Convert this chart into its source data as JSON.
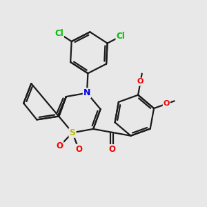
{
  "bg_color": "#e8e8e8",
  "bond_color": "#1a1a1a",
  "cl_color": "#00bb00",
  "n_color": "#0000ee",
  "s_color": "#bbbb00",
  "o_color": "#ee0000",
  "lw": 1.6,
  "figsize": [
    3.0,
    3.0
  ],
  "dpi": 100,
  "xlim": [
    0,
    10
  ],
  "ylim": [
    0,
    10
  ]
}
